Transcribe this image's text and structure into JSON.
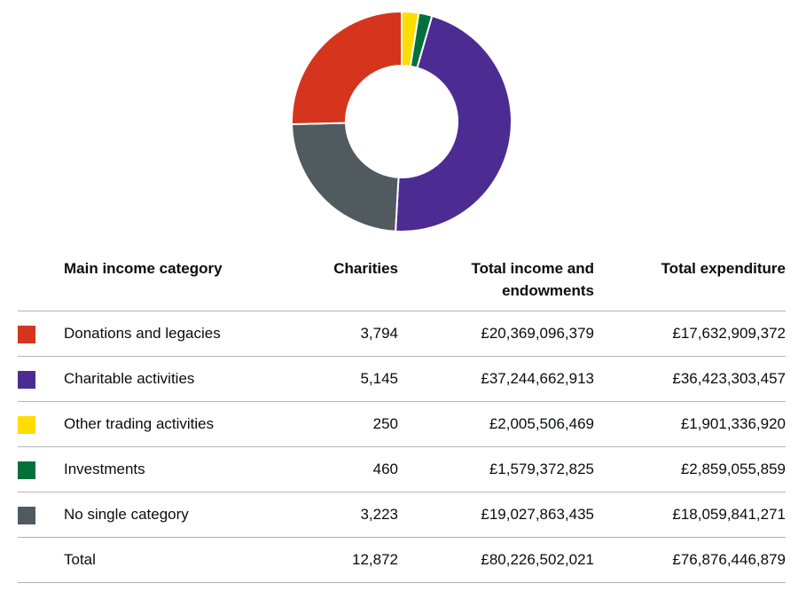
{
  "chart_data": {
    "type": "pie",
    "donut": true,
    "series": [
      {
        "name": "Donations and legacies",
        "value": 20369096379,
        "color": "#d4351c"
      },
      {
        "name": "Charitable activities",
        "value": 37244662913,
        "color": "#4c2c92"
      },
      {
        "name": "Other trading activities",
        "value": 2005506469,
        "color": "#ffdd00"
      },
      {
        "name": "Investments",
        "value": 1579372825,
        "color": "#00703c"
      },
      {
        "name": "No single category",
        "value": 19027863435,
        "color": "#505a5f"
      }
    ]
  },
  "table": {
    "headers": {
      "category": "Main income category",
      "charities": "Charities",
      "income": "Total income and endowments",
      "expenditure": "Total expenditure"
    },
    "rows": [
      {
        "category": "Donations and legacies",
        "charities": "3,794",
        "income": "£20,369,096,379",
        "expenditure": "£17,632,909,372",
        "color": "#d4351c"
      },
      {
        "category": "Charitable activities",
        "charities": "5,145",
        "income": "£37,244,662,913",
        "expenditure": "£36,423,303,457",
        "color": "#4c2c92"
      },
      {
        "category": "Other trading activities",
        "charities": "250",
        "income": "£2,005,506,469",
        "expenditure": "£1,901,336,920",
        "color": "#ffdd00"
      },
      {
        "category": "Investments",
        "charities": "460",
        "income": "£1,579,372,825",
        "expenditure": "£2,859,055,859",
        "color": "#00703c"
      },
      {
        "category": "No single category",
        "charities": "3,223",
        "income": "£19,027,863,435",
        "expenditure": "£18,059,841,271",
        "color": "#505a5f"
      }
    ],
    "total": {
      "category": "Total",
      "charities": "12,872",
      "income": "£80,226,502,021",
      "expenditure": "£76,876,446,879"
    }
  }
}
